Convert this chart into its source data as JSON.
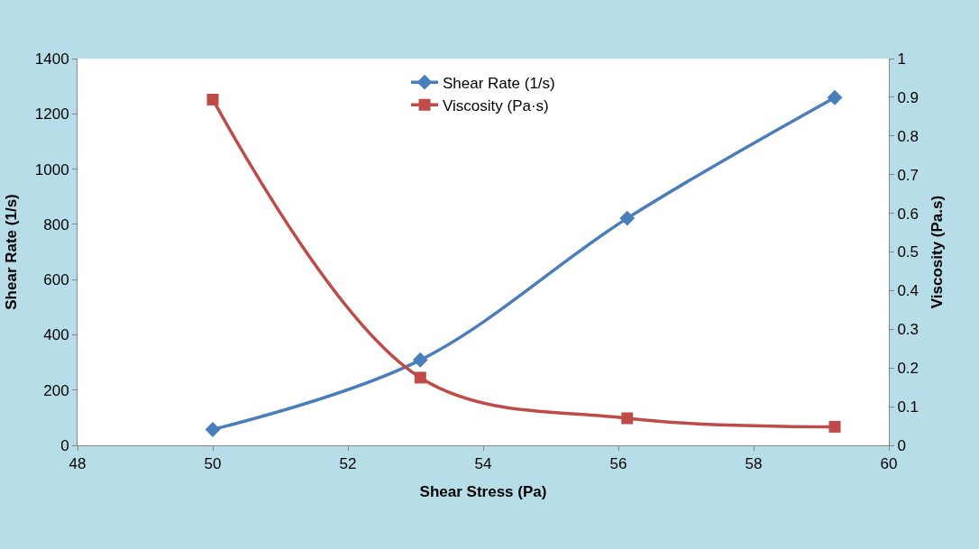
{
  "chart_data": {
    "type": "line",
    "xlabel": "Shear Stress (Pa)",
    "ylabel": "Shear Rate (1/s)",
    "y2label": "Viscosity (Pa.s)",
    "x": [
      50,
      53.07,
      56.13,
      59.2
    ],
    "series": [
      {
        "name": "Shear Rate (1/s)",
        "color": "#4a7ebb",
        "marker": "diamond",
        "values": [
          57,
          309,
          822,
          1259
        ]
      },
      {
        "name": "Viscosity (Pa·s)",
        "color": "#be4b48",
        "marker": "square",
        "axis": "y2",
        "values": [
          0.894,
          0.175,
          0.07,
          0.048
        ]
      }
    ],
    "xlim": [
      48,
      60
    ],
    "xticks": [
      48,
      50,
      52,
      54,
      56,
      58,
      60
    ],
    "ylim": [
      0,
      1400
    ],
    "yticks": [
      0,
      200,
      400,
      600,
      800,
      1000,
      1200,
      1400
    ],
    "y2lim": [
      0,
      1
    ],
    "y2ticks": [
      0,
      0.1,
      0.2,
      0.3,
      0.4,
      0.5,
      0.6,
      0.7,
      0.8,
      0.9,
      1
    ],
    "legend": "top",
    "line_style": "solid"
  }
}
